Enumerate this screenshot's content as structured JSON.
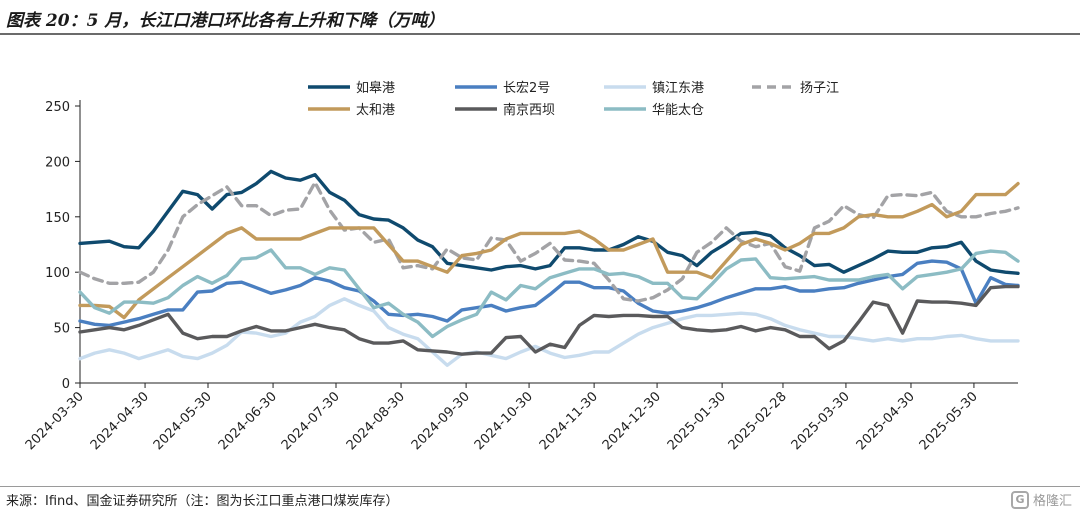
{
  "title": "图表 20：5 月，长江口港口环比各有上升和下降（万吨）",
  "source": "来源：Ifind、国金证券研究所（注：图为长江口重点港口煤炭库存）",
  "watermark": {
    "text": "格隆汇",
    "logo_letter": "G"
  },
  "chart_data": {
    "type": "line",
    "title": "图表 20：5 月，长江口港口环比各有上升和下降（万吨）",
    "ylim": [
      0,
      250
    ],
    "yticks": [
      0,
      50,
      100,
      150,
      200,
      250
    ],
    "xlim": [
      "2024-03-30",
      "2025-06-20"
    ],
    "xticks": [
      "2024-03-30",
      "2024-04-30",
      "2024-05-30",
      "2024-06-30",
      "2024-07-30",
      "2024-08-30",
      "2024-09-30",
      "2024-10-30",
      "2024-11-30",
      "2024-12-30",
      "2025-01-30",
      "2025-02-28",
      "2025-03-30",
      "2025-04-30",
      "2025-05-30"
    ],
    "grid": false,
    "legend": "top, two rows",
    "x": [
      "2024-03-30",
      "2024-04-06",
      "2024-04-13",
      "2024-04-20",
      "2024-04-27",
      "2024-05-04",
      "2024-05-11",
      "2024-05-18",
      "2024-05-25",
      "2024-06-01",
      "2024-06-08",
      "2024-06-15",
      "2024-06-22",
      "2024-06-29",
      "2024-07-06",
      "2024-07-13",
      "2024-07-20",
      "2024-07-27",
      "2024-08-03",
      "2024-08-10",
      "2024-08-17",
      "2024-08-24",
      "2024-08-31",
      "2024-09-07",
      "2024-09-14",
      "2024-09-21",
      "2024-09-28",
      "2024-10-05",
      "2024-10-12",
      "2024-10-19",
      "2024-10-26",
      "2024-11-02",
      "2024-11-09",
      "2024-11-16",
      "2024-11-23",
      "2024-11-30",
      "2024-12-07",
      "2024-12-14",
      "2024-12-21",
      "2024-12-28",
      "2025-01-04",
      "2025-01-11",
      "2025-01-18",
      "2025-01-25",
      "2025-02-01",
      "2025-02-08",
      "2025-02-15",
      "2025-02-22",
      "2025-03-01",
      "2025-03-08",
      "2025-03-15",
      "2025-03-22",
      "2025-03-29",
      "2025-04-05",
      "2025-04-12",
      "2025-04-19",
      "2025-04-26",
      "2025-05-03",
      "2025-05-10",
      "2025-05-17",
      "2025-05-24",
      "2025-05-31",
      "2025-06-07",
      "2025-06-14",
      "2025-06-20"
    ],
    "series": [
      {
        "name": "如皋港",
        "color": "#0f4a6e",
        "dash": false,
        "values": [
          126,
          127,
          128,
          123,
          122,
          137,
          155,
          173,
          170,
          157,
          170,
          172,
          180,
          191,
          185,
          183,
          188,
          172,
          165,
          152,
          148,
          147,
          140,
          129,
          123,
          108,
          106,
          104,
          102,
          105,
          106,
          103,
          106,
          122,
          122,
          120,
          120,
          125,
          132,
          128,
          118,
          115,
          106,
          118,
          126,
          135,
          136,
          133,
          122,
          115,
          106,
          107,
          100,
          106,
          112,
          119,
          118,
          118,
          122,
          123,
          127,
          110,
          102,
          100,
          99
        ]
      },
      {
        "name": "长宏2号",
        "color": "#4a7fc1",
        "dash": false,
        "values": [
          56,
          53,
          52,
          55,
          58,
          62,
          66,
          66,
          82,
          83,
          90,
          91,
          86,
          81,
          84,
          88,
          95,
          92,
          86,
          83,
          74,
          62,
          61,
          62,
          60,
          56,
          66,
          68,
          70,
          65,
          68,
          70,
          80,
          91,
          91,
          86,
          86,
          83,
          72,
          65,
          63,
          65,
          68,
          72,
          77,
          81,
          85,
          85,
          87,
          83,
          83,
          85,
          86,
          90,
          93,
          96,
          98,
          108,
          110,
          109,
          103,
          72,
          95,
          89,
          88
        ]
      },
      {
        "name": "镇江东港",
        "color": "#c8dcee",
        "dash": false,
        "values": [
          22,
          27,
          30,
          27,
          22,
          26,
          30,
          24,
          22,
          27,
          34,
          46,
          45,
          42,
          45,
          55,
          60,
          70,
          76,
          70,
          65,
          50,
          44,
          40,
          28,
          16,
          26,
          28,
          25,
          22,
          28,
          33,
          27,
          23,
          25,
          28,
          28,
          36,
          44,
          50,
          54,
          58,
          61,
          61,
          62,
          63,
          62,
          58,
          52,
          48,
          45,
          42,
          42,
          40,
          38,
          40,
          38,
          40,
          40,
          42,
          43,
          40,
          38,
          38,
          38
        ]
      },
      {
        "name": "扬子江",
        "color": "#a3a3a6",
        "dash": true,
        "values": [
          100,
          94,
          90,
          90,
          91,
          100,
          120,
          150,
          161,
          169,
          177,
          160,
          160,
          151,
          156,
          157,
          181,
          156,
          138,
          140,
          127,
          130,
          104,
          106,
          103,
          121,
          113,
          111,
          131,
          129,
          110,
          117,
          126,
          111,
          110,
          108,
          93,
          76,
          74,
          77,
          84,
          94,
          118,
          127,
          140,
          128,
          123,
          126,
          105,
          101,
          140,
          146,
          160,
          152,
          149,
          169,
          170,
          169,
          172,
          155,
          150,
          150,
          153,
          155,
          158
        ]
      },
      {
        "name": "太和港",
        "color": "#c29a5b",
        "dash": false,
        "values": [
          70,
          70,
          69,
          59,
          75,
          85,
          95,
          105,
          115,
          125,
          135,
          140,
          130,
          130,
          130,
          130,
          135,
          140,
          140,
          140,
          140,
          125,
          110,
          110,
          105,
          100,
          115,
          117,
          120,
          130,
          135,
          135,
          135,
          135,
          137,
          130,
          120,
          120,
          125,
          130,
          100,
          100,
          100,
          95,
          110,
          125,
          130,
          126,
          120,
          126,
          135,
          135,
          140,
          150,
          152,
          150,
          150,
          155,
          161,
          150,
          155,
          170,
          170,
          170,
          180
        ]
      },
      {
        "name": "南京西坝",
        "color": "#5a5a5c",
        "dash": false,
        "values": [
          46,
          48,
          50,
          48,
          52,
          57,
          62,
          45,
          40,
          42,
          42,
          47,
          51,
          47,
          47,
          50,
          53,
          50,
          48,
          40,
          36,
          36,
          38,
          30,
          29,
          28,
          26,
          27,
          27,
          41,
          42,
          28,
          35,
          32,
          52,
          61,
          60,
          61,
          61,
          60,
          60,
          50,
          48,
          47,
          48,
          51,
          47,
          50,
          48,
          42,
          42,
          31,
          38,
          55,
          73,
          70,
          45,
          74,
          73,
          73,
          72,
          70,
          86,
          87,
          87
        ]
      },
      {
        "name": "华能太仓",
        "color": "#8cbcc4",
        "dash": false,
        "values": [
          82,
          68,
          63,
          73,
          73,
          72,
          77,
          88,
          96,
          90,
          97,
          112,
          113,
          120,
          104,
          104,
          98,
          104,
          102,
          85,
          68,
          72,
          62,
          55,
          42,
          51,
          57,
          62,
          82,
          75,
          88,
          85,
          95,
          99,
          103,
          103,
          98,
          99,
          96,
          90,
          90,
          77,
          76,
          89,
          103,
          111,
          112,
          95,
          94,
          95,
          96,
          93,
          93,
          93,
          96,
          98,
          85,
          96,
          98,
          100,
          103,
          117,
          119,
          118,
          110
        ]
      }
    ]
  }
}
